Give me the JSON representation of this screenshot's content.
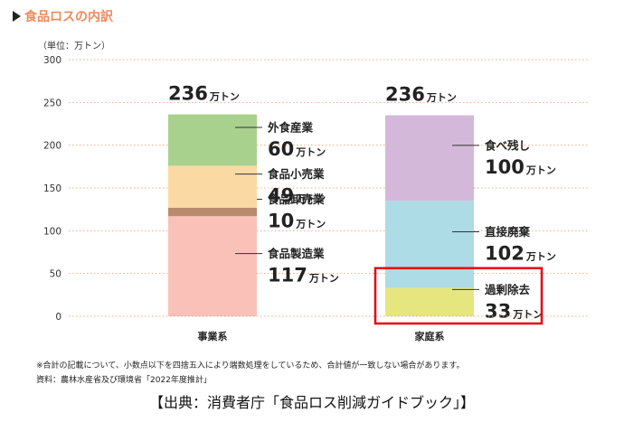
{
  "header": {
    "title": "食品ロスの内訳"
  },
  "chart_data": {
    "type": "bar",
    "stacked": true,
    "unit_label": "（単位：万トン）",
    "ylim": [
      0,
      300
    ],
    "yticks": [
      0,
      50,
      100,
      150,
      200,
      250,
      300
    ],
    "grid": true,
    "categories": [
      "事業系",
      "家庭系"
    ],
    "totals": [
      {
        "value": "236",
        "unit": "万トン"
      },
      {
        "value": "236",
        "unit": "万トン"
      }
    ],
    "stacks": [
      {
        "category": "事業系",
        "segments": [
          {
            "name": "食品製造業",
            "value": 117,
            "unit": "万トン",
            "color": "#f9c1b8"
          },
          {
            "name": "食品卸売業",
            "value": 10,
            "unit": "万トン",
            "color": "#b98a6e"
          },
          {
            "name": "食品小売業",
            "value": 49,
            "unit": "万トン",
            "color": "#fbd9a2"
          },
          {
            "name": "外食産業",
            "value": 60,
            "unit": "万トン",
            "color": "#a9d18e"
          }
        ]
      },
      {
        "category": "家庭系",
        "segments": [
          {
            "name": "過剰除去",
            "value": 33,
            "unit": "万トン",
            "color": "#e6e67e",
            "highlight": true
          },
          {
            "name": "直接廃棄",
            "value": 102,
            "unit": "万トン",
            "color": "#addbe6"
          },
          {
            "name": "食べ残し",
            "value": 100,
            "unit": "万トン",
            "color": "#d4b8da"
          }
        ]
      }
    ],
    "highlight_color": "#e60012"
  },
  "footnote": "※合計の記載について、小数点以下を四捨五入により端数処理をしているため、合計値が一致しない場合があります。",
  "source": "資料：農林水産省及び環境省「2022年度推計」",
  "credit": "【出典：消費者庁「食品ロス削減ガイドブック」】"
}
